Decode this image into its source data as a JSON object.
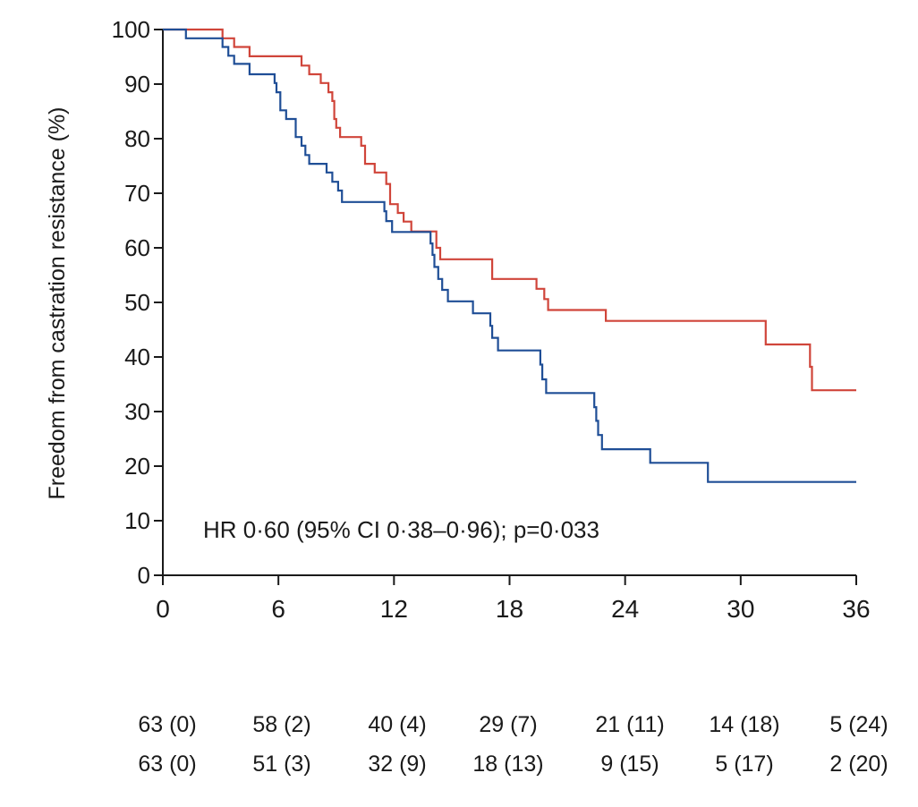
{
  "chart_data": {
    "type": "line",
    "title": "",
    "xlabel": "",
    "ylabel": "Freedom from castration resistance (%)",
    "xlim": [
      0,
      36
    ],
    "ylim": [
      0,
      100
    ],
    "x_ticks": [
      "0",
      "6",
      "12",
      "18",
      "24",
      "30",
      "36"
    ],
    "y_ticks": [
      "0",
      "10",
      "20",
      "30",
      "40",
      "50",
      "60",
      "70",
      "80",
      "90",
      "100"
    ],
    "grid": false,
    "legend": "none",
    "annotation": "HR 0·60 (95% CI 0·38–0·96); p=0·033",
    "series": [
      {
        "color": "#d0453a",
        "step": true,
        "points": [
          [
            0,
            100
          ],
          [
            3.1,
            100
          ],
          [
            3.1,
            98.4
          ],
          [
            3.7,
            98.4
          ],
          [
            3.7,
            96.8
          ],
          [
            4.5,
            96.8
          ],
          [
            4.5,
            95.1
          ],
          [
            7.2,
            95.1
          ],
          [
            7.2,
            93.4
          ],
          [
            7.6,
            93.4
          ],
          [
            7.6,
            91.8
          ],
          [
            8.2,
            91.8
          ],
          [
            8.2,
            90.2
          ],
          [
            8.6,
            90.2
          ],
          [
            8.6,
            88.5
          ],
          [
            8.8,
            88.5
          ],
          [
            8.8,
            86.9
          ],
          [
            8.9,
            86.9
          ],
          [
            8.9,
            83.6
          ],
          [
            9.0,
            83.6
          ],
          [
            9.0,
            82.0
          ],
          [
            9.2,
            82.0
          ],
          [
            9.2,
            80.3
          ],
          [
            10.3,
            80.3
          ],
          [
            10.3,
            78.7
          ],
          [
            10.5,
            78.7
          ],
          [
            10.5,
            75.4
          ],
          [
            11.0,
            75.4
          ],
          [
            11.0,
            73.8
          ],
          [
            11.6,
            73.8
          ],
          [
            11.6,
            71.7
          ],
          [
            11.8,
            71.7
          ],
          [
            11.8,
            68.0
          ],
          [
            12.2,
            68.0
          ],
          [
            12.2,
            66.4
          ],
          [
            12.5,
            66.4
          ],
          [
            12.5,
            64.8
          ],
          [
            12.9,
            64.8
          ],
          [
            12.9,
            63.0
          ],
          [
            14.2,
            63.0
          ],
          [
            14.2,
            60.0
          ],
          [
            14.4,
            60.0
          ],
          [
            14.4,
            57.9
          ],
          [
            17.1,
            57.9
          ],
          [
            17.1,
            54.3
          ],
          [
            19.4,
            54.3
          ],
          [
            19.4,
            52.5
          ],
          [
            19.8,
            52.5
          ],
          [
            19.8,
            50.6
          ],
          [
            20.0,
            50.6
          ],
          [
            20.0,
            48.6
          ],
          [
            23.0,
            48.6
          ],
          [
            23.0,
            46.6
          ],
          [
            31.3,
            46.6
          ],
          [
            31.3,
            42.3
          ],
          [
            33.6,
            42.3
          ],
          [
            33.6,
            38.2
          ],
          [
            33.7,
            38.2
          ],
          [
            33.7,
            33.9
          ],
          [
            36,
            33.9
          ]
        ]
      },
      {
        "color": "#1f4e96",
        "step": true,
        "points": [
          [
            0,
            100
          ],
          [
            1.2,
            100
          ],
          [
            1.2,
            98.4
          ],
          [
            3.1,
            98.4
          ],
          [
            3.1,
            96.8
          ],
          [
            3.4,
            96.8
          ],
          [
            3.4,
            95.2
          ],
          [
            3.7,
            95.2
          ],
          [
            3.7,
            93.7
          ],
          [
            4.5,
            93.7
          ],
          [
            4.5,
            91.8
          ],
          [
            5.8,
            91.8
          ],
          [
            5.8,
            90.2
          ],
          [
            5.9,
            90.2
          ],
          [
            5.9,
            88.5
          ],
          [
            6.1,
            88.5
          ],
          [
            6.1,
            85.2
          ],
          [
            6.4,
            85.2
          ],
          [
            6.4,
            83.6
          ],
          [
            6.9,
            83.6
          ],
          [
            6.9,
            80.3
          ],
          [
            7.2,
            80.3
          ],
          [
            7.2,
            78.7
          ],
          [
            7.4,
            78.7
          ],
          [
            7.4,
            77.0
          ],
          [
            7.6,
            77.0
          ],
          [
            7.6,
            75.4
          ],
          [
            8.5,
            75.4
          ],
          [
            8.5,
            73.8
          ],
          [
            8.8,
            73.8
          ],
          [
            8.8,
            72.1
          ],
          [
            9.1,
            72.1
          ],
          [
            9.1,
            70.5
          ],
          [
            9.3,
            70.5
          ],
          [
            9.3,
            68.4
          ],
          [
            11.5,
            68.4
          ],
          [
            11.5,
            66.7
          ],
          [
            11.6,
            66.7
          ],
          [
            11.6,
            64.9
          ],
          [
            11.9,
            64.9
          ],
          [
            11.9,
            62.9
          ],
          [
            13.9,
            62.9
          ],
          [
            13.9,
            60.8
          ],
          [
            14.0,
            60.8
          ],
          [
            14.0,
            58.7
          ],
          [
            14.1,
            58.7
          ],
          [
            14.1,
            56.5
          ],
          [
            14.3,
            56.5
          ],
          [
            14.3,
            54.3
          ],
          [
            14.5,
            54.3
          ],
          [
            14.5,
            52.3
          ],
          [
            14.8,
            52.3
          ],
          [
            14.8,
            50.2
          ],
          [
            16.1,
            50.2
          ],
          [
            16.1,
            48.0
          ],
          [
            17.0,
            48.0
          ],
          [
            17.0,
            45.7
          ],
          [
            17.1,
            45.7
          ],
          [
            17.1,
            43.5
          ],
          [
            17.4,
            43.5
          ],
          [
            17.4,
            41.2
          ],
          [
            19.6,
            41.2
          ],
          [
            19.6,
            38.6
          ],
          [
            19.7,
            38.6
          ],
          [
            19.7,
            35.9
          ],
          [
            19.9,
            35.9
          ],
          [
            19.9,
            33.4
          ],
          [
            22.4,
            33.4
          ],
          [
            22.4,
            30.8
          ],
          [
            22.5,
            30.8
          ],
          [
            22.5,
            28.3
          ],
          [
            22.6,
            28.3
          ],
          [
            22.6,
            25.7
          ],
          [
            22.8,
            25.7
          ],
          [
            22.8,
            23.1
          ],
          [
            25.3,
            23.1
          ],
          [
            25.3,
            20.6
          ],
          [
            28.3,
            20.6
          ],
          [
            28.3,
            17.1
          ],
          [
            36,
            17.1
          ]
        ]
      }
    ]
  },
  "risk_table": {
    "rows": [
      [
        "63 (0)",
        "58 (2)",
        "40 (4)",
        "29 (7)",
        "21 (11)",
        "14 (18)",
        "5 (24)"
      ],
      [
        "63 (0)",
        "51 (3)",
        "32 (9)",
        "18 (13)",
        "9 (15)",
        "5 (17)",
        "2 (20)"
      ]
    ]
  }
}
